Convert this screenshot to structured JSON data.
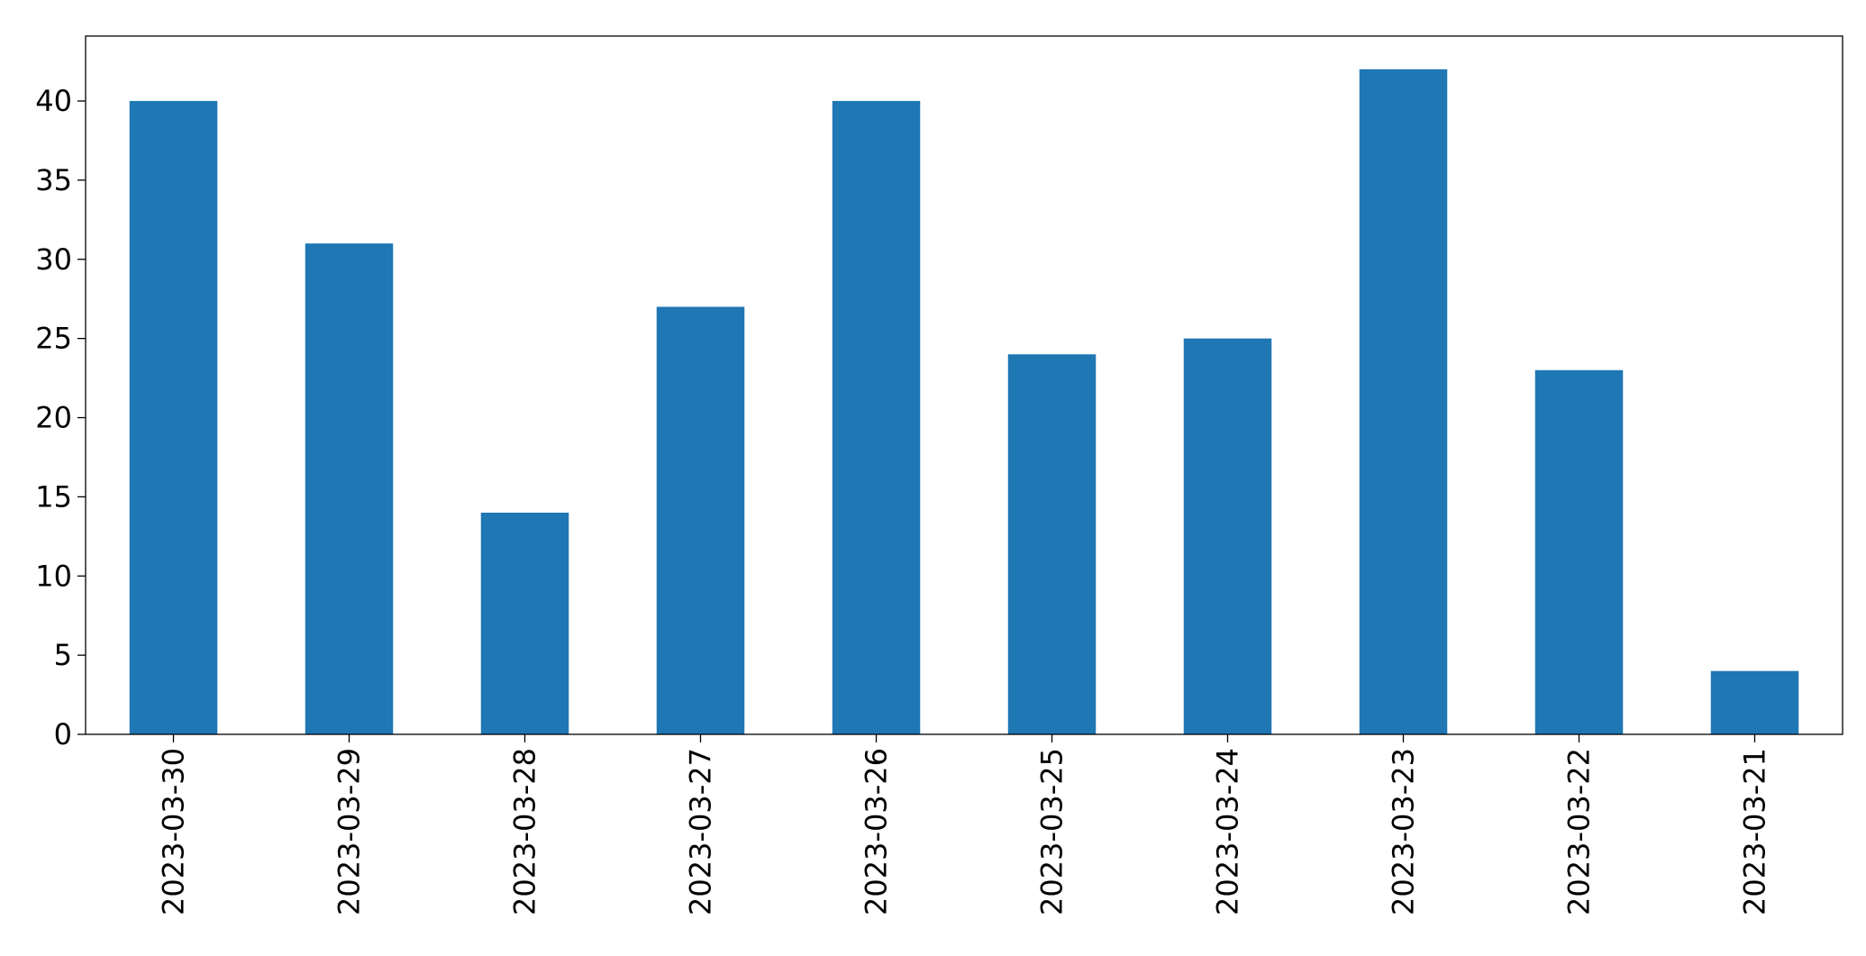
{
  "chart_data": {
    "type": "bar",
    "title": "",
    "xlabel": "",
    "ylabel": "",
    "categories": [
      "2023-03-30",
      "2023-03-29",
      "2023-03-28",
      "2023-03-27",
      "2023-03-26",
      "2023-03-25",
      "2023-03-24",
      "2023-03-23",
      "2023-03-22",
      "2023-03-21"
    ],
    "values": [
      40,
      31,
      14,
      27,
      40,
      24,
      25,
      42,
      23,
      4
    ],
    "ylim": [
      0,
      44.1
    ],
    "yticks": [
      0,
      5,
      10,
      15,
      20,
      25,
      30,
      35,
      40
    ],
    "grid": false,
    "legend": "none",
    "colors": {
      "bar": "#1f77b4",
      "axis": "#000000",
      "text": "#000000",
      "background": "#ffffff"
    }
  }
}
